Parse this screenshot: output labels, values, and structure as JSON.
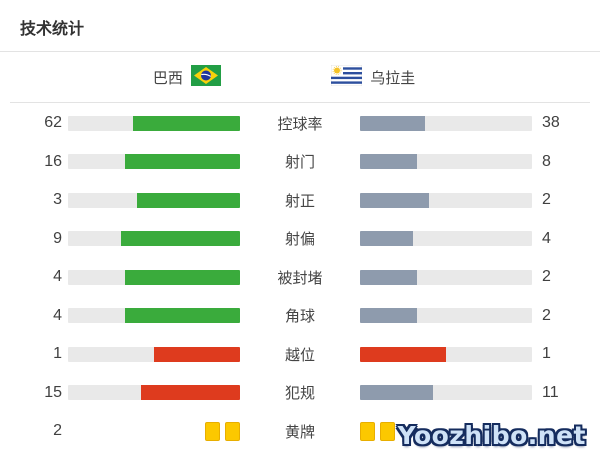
{
  "page": {
    "title": "技术统计",
    "watermark": "Yoozhibo.net"
  },
  "teams": {
    "home": {
      "name": "巴西"
    },
    "away": {
      "name": "乌拉圭"
    }
  },
  "colors": {
    "green": "#3aab3c",
    "gray": "#8e9bad",
    "red": "#de3b1e",
    "bar_bg": "#e9e9e9",
    "card": "#fcc800",
    "card_border": "#e8ae00"
  },
  "chart_data": {
    "type": "bar",
    "orientation": "horizontal-paired",
    "legend_position": "header",
    "teams": [
      "巴西",
      "乌拉圭"
    ],
    "note": "fill length = value / (home+away)",
    "rows": [
      {
        "label": "控球率",
        "home": 62,
        "away": 38,
        "home_style": "green",
        "away_style": "gray"
      },
      {
        "label": "射门",
        "home": 16,
        "away": 8,
        "home_style": "green",
        "away_style": "gray"
      },
      {
        "label": "射正",
        "home": 3,
        "away": 2,
        "home_style": "green",
        "away_style": "gray"
      },
      {
        "label": "射偏",
        "home": 9,
        "away": 4,
        "home_style": "green",
        "away_style": "gray"
      },
      {
        "label": "被封堵",
        "home": 4,
        "away": 2,
        "home_style": "green",
        "away_style": "gray"
      },
      {
        "label": "角球",
        "home": 4,
        "away": 2,
        "home_style": "green",
        "away_style": "gray"
      },
      {
        "label": "越位",
        "home": 1,
        "away": 1,
        "home_style": "red",
        "away_style": "red"
      },
      {
        "label": "犯规",
        "home": 15,
        "away": 11,
        "home_style": "red",
        "away_style": "gray"
      },
      {
        "label": "黄牌",
        "home": 2,
        "away": null,
        "kind": "cards",
        "home_cards": 2,
        "away_cards": 2
      }
    ]
  }
}
